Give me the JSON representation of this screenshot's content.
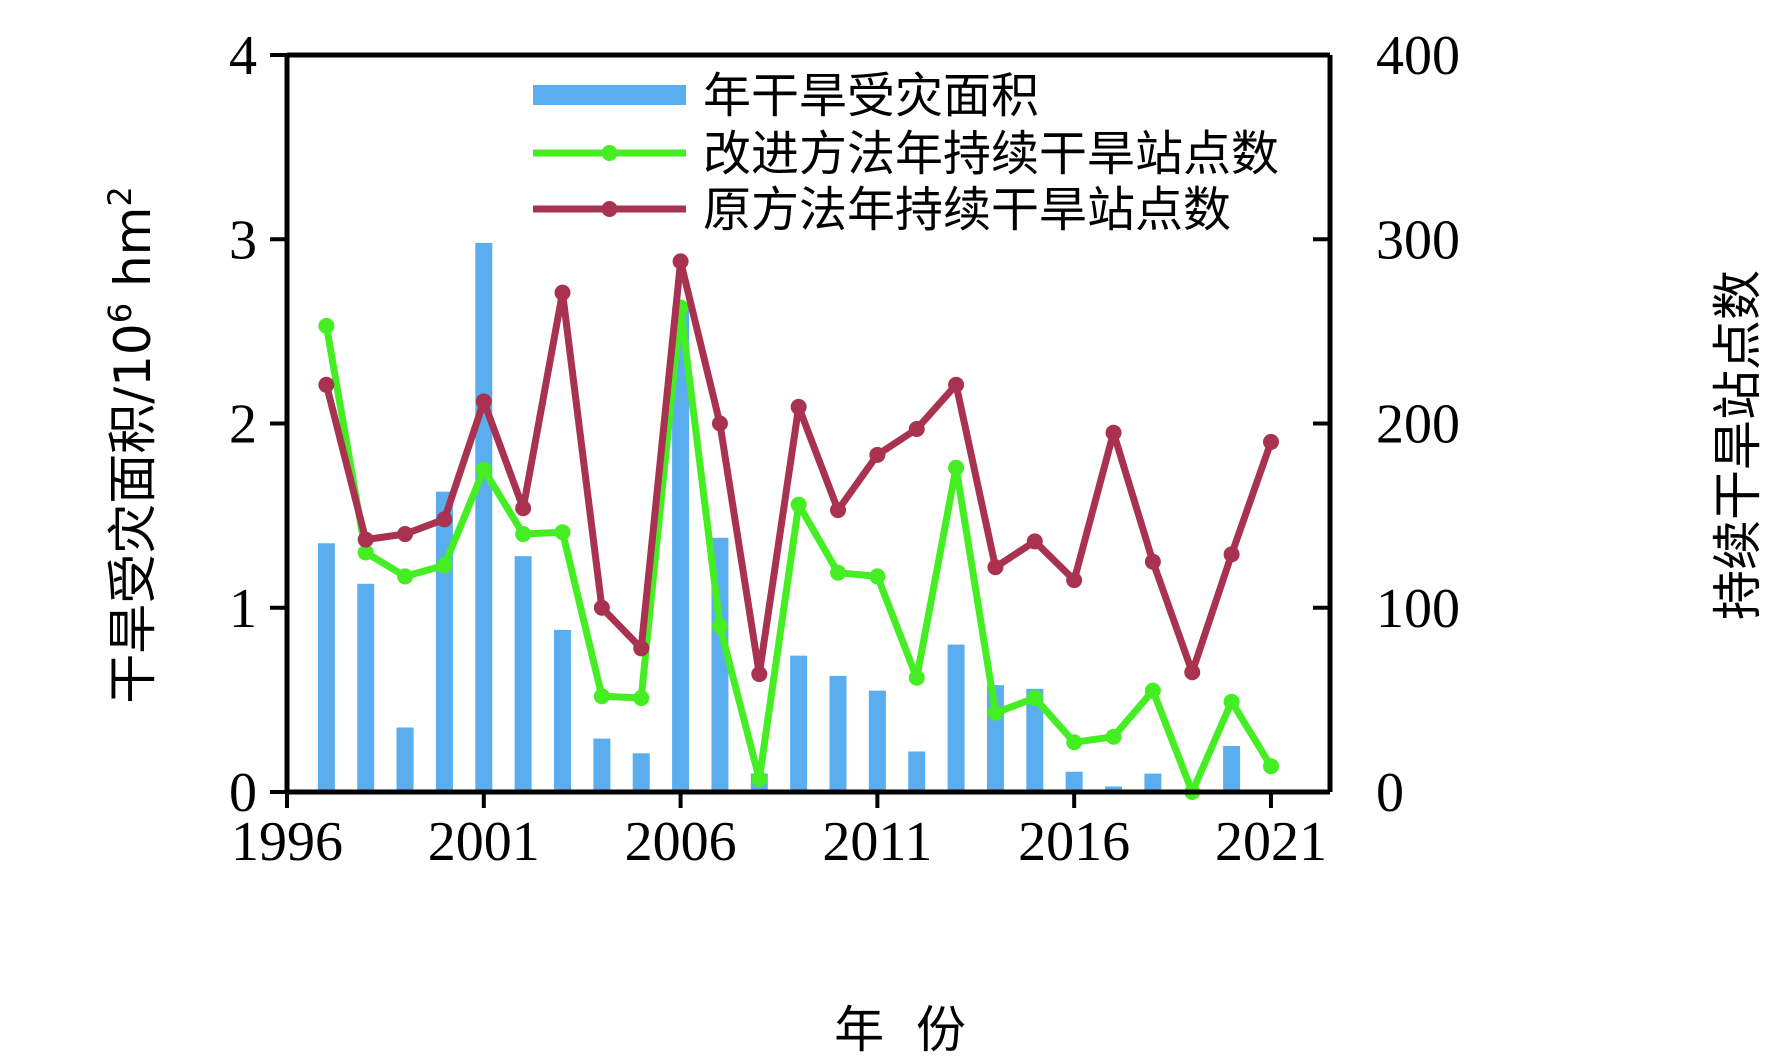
{
  "chart_data": {
    "type": "bar+line",
    "title": "",
    "xlabel": "年  份",
    "ylabel_left": "干旱受灾面积/10",
    "ylabel_left_sup": "6",
    "ylabel_left_unit": " hm",
    "ylabel_left_unit_sup": "2",
    "ylabel_right": "持续干旱站点数",
    "xlim": [
      1996,
      2022.5
    ],
    "ylim_left": [
      0,
      4
    ],
    "ylim_right": [
      0,
      400
    ],
    "x_ticks": [
      1996,
      2001,
      2006,
      2011,
      2016,
      2021
    ],
    "y_ticks_left": [
      0,
      1,
      2,
      3,
      4
    ],
    "y_ticks_right": [
      0,
      100,
      200,
      300,
      400
    ],
    "legend_position": "top",
    "grid": false,
    "x": [
      1997,
      1998,
      1999,
      2000,
      2001,
      2002,
      2003,
      2004,
      2005,
      2006,
      2007,
      2008,
      2009,
      2010,
      2011,
      2012,
      2013,
      2014,
      2015,
      2016,
      2017,
      2018,
      2019,
      2020,
      2021
    ],
    "series": [
      {
        "name": "年干旱受灾面积",
        "kind": "bar",
        "axis": "left",
        "color": "#5aaef0",
        "values": [
          1.35,
          1.13,
          0.35,
          1.63,
          2.98,
          1.28,
          0.88,
          0.29,
          0.21,
          2.63,
          1.38,
          0.1,
          0.74,
          0.63,
          0.55,
          0.22,
          0.8,
          0.58,
          0.56,
          0.11,
          0.03,
          0.1,
          0.0,
          0.25,
          0.0
        ]
      },
      {
        "name": "改进方法年持续干旱站点数",
        "kind": "line",
        "axis": "right",
        "color": "#44ee22",
        "values": [
          253,
          130,
          117,
          123,
          175,
          140,
          141,
          52,
          51,
          263,
          90,
          7,
          156,
          119,
          117,
          62,
          176,
          43,
          51,
          27,
          30,
          55,
          0,
          49,
          14
        ]
      },
      {
        "name": "原方法年持续干旱站点数",
        "kind": "line",
        "axis": "right",
        "color": "#a83250",
        "values": [
          221,
          137,
          140,
          148,
          212,
          154,
          271,
          100,
          78,
          288,
          200,
          64,
          209,
          153,
          183,
          197,
          221,
          122,
          136,
          115,
          195,
          125,
          65,
          129,
          190
        ]
      }
    ]
  }
}
